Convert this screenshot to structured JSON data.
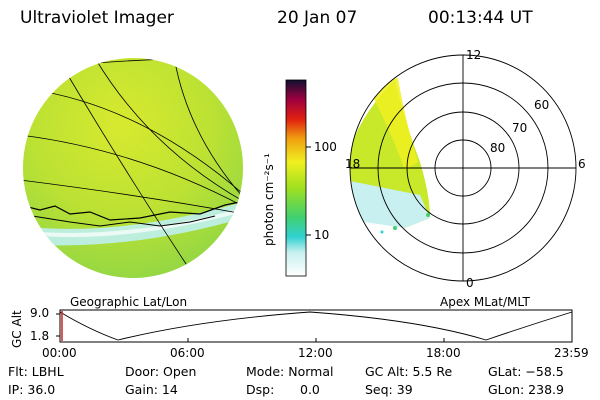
{
  "header": {
    "instrument": "Ultraviolet Imager",
    "date": "20 Jan 07",
    "time": "00:13:44 UT"
  },
  "colorbar": {
    "unit_label": "photon cm⁻²s⁻¹",
    "ticks": [
      "100",
      "10"
    ]
  },
  "panels": {
    "left_label": "Geographic Lat/Lon",
    "right_label": "Apex MLat/MLT"
  },
  "polar": {
    "mlt_labels": {
      "top": "12",
      "left": "18",
      "right": "6",
      "bottom": "0"
    },
    "lat_labels": [
      "60",
      "70",
      "80"
    ]
  },
  "altitude_plot": {
    "ylabel": "GC Alt",
    "yticks": [
      "9.0",
      "1.8"
    ],
    "xticks": [
      "00:00",
      "06:00",
      "12:00",
      "18:00",
      "23:59"
    ]
  },
  "info": {
    "row1": {
      "filter": "Flt: LBHL",
      "door": "Door: Open",
      "mode": "Mode: Normal",
      "gc_alt": "GC Alt: 5.5 Re",
      "glat": "GLat: −58.5"
    },
    "row2": {
      "ip": "IP: 36.0",
      "gain": "Gain: 14",
      "dsp_label": "Dsp:",
      "dsp_value": "0.0",
      "seq": "Seq: 39",
      "glon": "GLon: 238.9"
    }
  },
  "colors": {
    "aurora_green": "#b8e020",
    "aurora_yellow": "#e8f020",
    "aurora_cyan": "#8fe8e8"
  }
}
